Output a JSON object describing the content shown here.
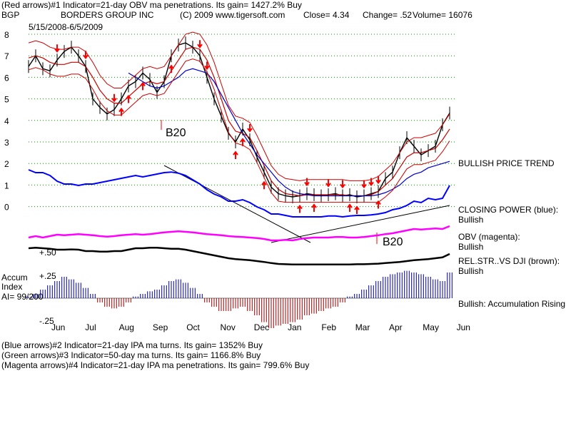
{
  "header": {
    "line1": "(Red arrows)#1 Indicator=21-day OBV ma penetrations. Its gain= 1427.2% Buy",
    "symbol": "BGP",
    "company": "BORDERS GROUP INC",
    "copyright": "(C) 2009 www.tigersoft.com",
    "close": "Close=  4.34",
    "change": "Change= .52",
    "volume": "Volume= 16076",
    "daterange": "5/15/2008-6/5/2009"
  },
  "footer": {
    "line1": "(Blue arrows)#2 Indicator=21-day IPA ma turns. Its gain= 1352% Buy",
    "line2": "(Green arrows)#3 Indicator=50-day ma turns. Its gain= 1166.8% Buy",
    "line3": "(Magenta arrows)#4 Indicator=21-day IPA ma penetrations. Its gain= 799.6% Buy"
  },
  "labels": {
    "b20_a": "B20",
    "b20_b": "B20",
    "bullish_trend": "BULLISH PRICE TREND",
    "closing_power": "CLOSING POWER (blue):",
    "closing_power_v": "Bullish",
    "obv": "OBV (magenta):",
    "obv_v": "Bullish",
    "relstr": "REL.STR..VS DJI (brown):",
    "relstr_v": "Bullish",
    "accum_status": "Bullish: Accumulation Rising",
    "accum_title1": "Accum",
    "accum_title2": "Index",
    "accum_ai": "AI= 99/200",
    "acc_plus50": "+.50",
    "acc_plus25": "+.25",
    "acc_minus25": "-.25"
  },
  "colors": {
    "price": "#000000",
    "ma_red": "#cc0000",
    "ma_blue": "#0000cc",
    "closing_power": "#0000ff",
    "obv": "#ff00ff",
    "relstr": "#000000",
    "accum_pos": "#0000aa",
    "accum_neg": "#aa0000",
    "arrow_red": "#ff0000",
    "grid": "#009900"
  },
  "chart_data": {
    "type": "line",
    "title": "BORDERS GROUP INC",
    "ylim": [
      0,
      8
    ],
    "yticks": [
      "8",
      "7",
      "6",
      "5",
      "4",
      "3",
      "2",
      "1",
      "0"
    ],
    "months": [
      "Jun",
      "Jul",
      "Aug",
      "Sep",
      "Oct",
      "Nov",
      "Dec",
      "Jan",
      "Feb",
      "Mar",
      "Apr",
      "May",
      "Jun"
    ],
    "x": [
      0,
      1,
      2,
      3,
      4,
      5,
      6,
      7,
      8,
      9,
      10,
      11,
      12,
      13,
      14,
      15,
      16,
      17,
      18,
      19,
      20,
      21,
      22,
      23,
      24,
      25,
      26,
      27,
      28,
      29,
      30,
      31,
      32,
      33,
      34,
      35,
      36,
      37,
      38,
      39,
      40,
      41,
      42,
      43,
      44,
      45,
      46,
      47,
      48,
      49,
      50,
      51,
      52,
      53,
      54,
      55,
      56,
      57,
      58,
      59
    ],
    "series": [
      {
        "name": "Price",
        "values": [
          6.5,
          7.0,
          6.4,
          6.3,
          6.8,
          7.2,
          7.4,
          7.0,
          6.5,
          5.0,
          4.6,
          4.3,
          4.5,
          5.0,
          5.6,
          5.8,
          6.2,
          5.9,
          5.3,
          5.8,
          7.0,
          7.5,
          7.6,
          7.4,
          7.0,
          6.0,
          5.0,
          4.2,
          3.4,
          3.0,
          3.6,
          3.1,
          2.3,
          1.6,
          0.9,
          0.6,
          0.5,
          0.45,
          0.5,
          0.6,
          0.55,
          0.5,
          0.55,
          0.6,
          0.5,
          0.55,
          0.45,
          0.5,
          0.6,
          0.7,
          1.3,
          1.6,
          2.5,
          3.2,
          2.8,
          2.4,
          2.6,
          2.8,
          3.8,
          4.34
        ]
      },
      {
        "name": "",
        "values": [
          6.9,
          7.0,
          6.9,
          6.7,
          6.6,
          6.6,
          6.7,
          6.7,
          6.5,
          6.0,
          5.4,
          5.0,
          4.8,
          4.8,
          5.1,
          5.4,
          5.7,
          5.8,
          5.7,
          5.8,
          6.3,
          6.8,
          7.3,
          7.4,
          7.3,
          6.8,
          6.0,
          5.0,
          4.0,
          3.5,
          3.4,
          3.2,
          2.6,
          1.9,
          1.2,
          0.8,
          0.6,
          0.55,
          0.5,
          0.55,
          0.55,
          0.55,
          0.55,
          0.55,
          0.55,
          0.5,
          0.5,
          0.5,
          0.55,
          0.7,
          1.0,
          1.3,
          1.8,
          2.3,
          2.5,
          2.5,
          2.6,
          2.7,
          3.1,
          3.6
        ]
      },
      {
        "name": "",
        "values": [
          null,
          null,
          null,
          null,
          null,
          null,
          null,
          null,
          null,
          null,
          null,
          null,
          null,
          null,
          6.2,
          6.0,
          5.8,
          5.6,
          5.5,
          5.6,
          5.8,
          6.0,
          6.3,
          6.4,
          6.3,
          6.2,
          5.8,
          5.2,
          4.6,
          4.0,
          3.4,
          2.9,
          2.4,
          2.0,
          1.6,
          1.2,
          0.9,
          0.7,
          0.6,
          0.55,
          0.5,
          0.5,
          0.5,
          0.5,
          0.5,
          0.5,
          0.5,
          0.5,
          0.5,
          0.55,
          0.65,
          0.8,
          1.0,
          1.3,
          1.5,
          1.6,
          1.8,
          1.9,
          2.0,
          2.1
        ]
      }
    ]
  }
}
